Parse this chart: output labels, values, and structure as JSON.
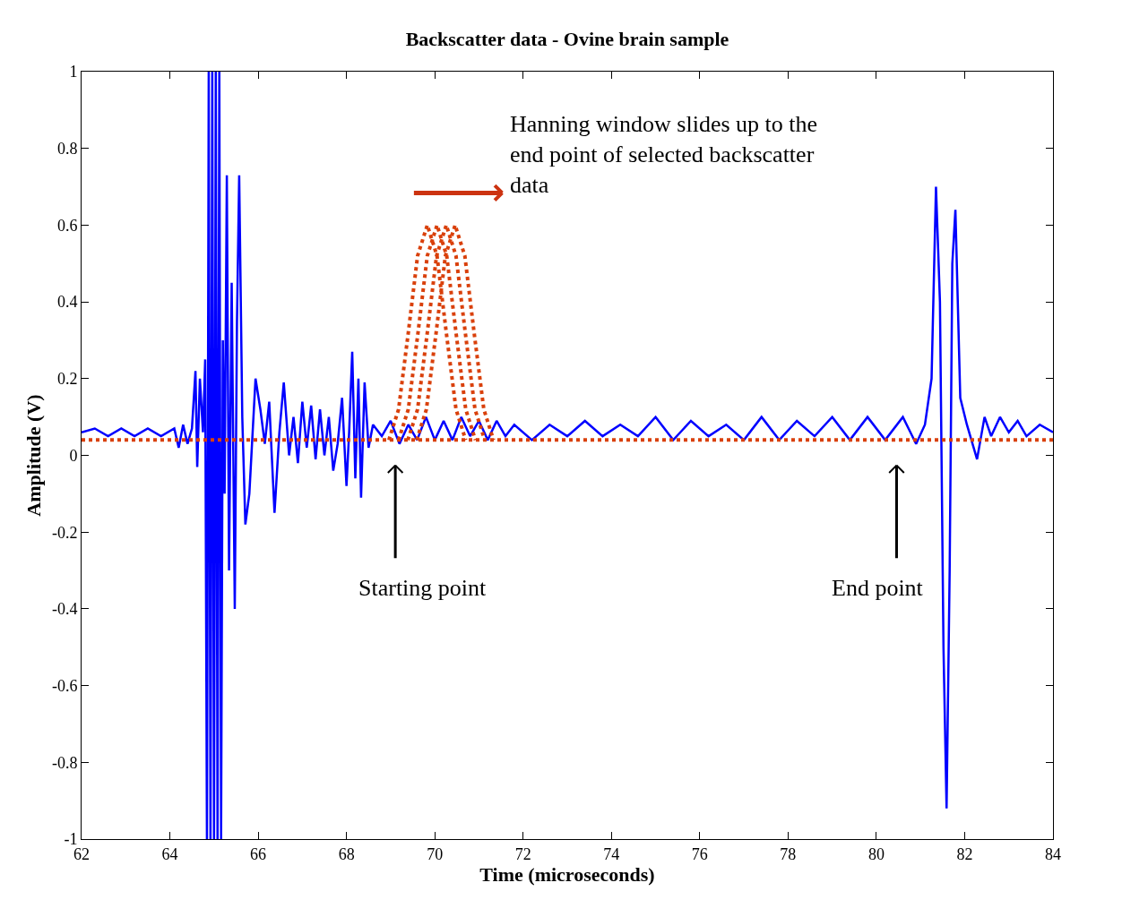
{
  "chart_data": {
    "type": "line",
    "title": "Backscatter data - Ovine brain sample",
    "xlabel": "Time (microseconds)",
    "ylabel": "Amplitude (V)",
    "xlim": [
      62,
      84
    ],
    "xticks": [
      62,
      64,
      66,
      68,
      70,
      72,
      74,
      76,
      78,
      80,
      82,
      84
    ],
    "ylim": [
      -1,
      1
    ],
    "yticks": [
      -1,
      -0.8,
      -0.6,
      -0.4,
      -0.2,
      0,
      0.2,
      0.4,
      0.6,
      0.8,
      1
    ],
    "series": [
      {
        "color": "#0000ff",
        "line_style": "solid",
        "x": [
          62,
          62.3,
          62.6,
          62.9,
          63.2,
          63.5,
          63.8,
          64.1,
          64.2,
          64.3,
          64.4,
          64.5,
          64.58,
          64.62,
          64.68,
          64.75,
          64.8,
          64.84,
          64.88,
          64.92,
          64.96,
          65.0,
          65.04,
          65.08,
          65.12,
          65.16,
          65.2,
          65.24,
          65.29,
          65.34,
          65.4,
          65.47,
          65.52,
          65.57,
          65.64,
          65.71,
          65.8,
          65.94,
          66.05,
          66.15,
          66.25,
          66.37,
          66.48,
          66.58,
          66.7,
          66.8,
          66.9,
          67.0,
          67.1,
          67.2,
          67.3,
          67.4,
          67.5,
          67.6,
          67.7,
          67.8,
          67.9,
          68.0,
          68.06,
          68.13,
          68.2,
          68.27,
          68.33,
          68.41,
          68.5,
          68.6,
          68.8,
          69.0,
          69.2,
          69.4,
          69.6,
          69.8,
          70.0,
          70.2,
          70.4,
          70.6,
          70.8,
          71.0,
          71.2,
          71.4,
          71.6,
          71.8,
          72.2,
          72.6,
          73.0,
          73.4,
          73.8,
          74.2,
          74.6,
          75.0,
          75.4,
          75.8,
          76.2,
          76.6,
          77.0,
          77.4,
          77.8,
          78.2,
          78.6,
          79.0,
          79.4,
          79.8,
          80.2,
          80.6,
          80.9,
          81.1,
          81.25,
          81.35,
          81.44,
          81.52,
          81.59,
          81.66,
          81.72,
          81.79,
          81.9,
          82.05,
          82.28,
          82.45,
          82.6,
          82.8,
          83.0,
          83.2,
          83.4,
          83.7,
          84
        ],
        "values": [
          0.06,
          0.07,
          0.05,
          0.07,
          0.05,
          0.07,
          0.05,
          0.07,
          0.02,
          0.08,
          0.03,
          0.07,
          0.22,
          -0.03,
          0.2,
          0.06,
          0.25,
          -1,
          1,
          -1,
          1,
          -1,
          1,
          -1,
          1,
          -1,
          0.3,
          -0.1,
          0.73,
          -0.3,
          0.45,
          -0.4,
          0.35,
          0.73,
          0.1,
          -0.18,
          -0.1,
          0.2,
          0.12,
          0.03,
          0.14,
          -0.15,
          0.06,
          0.19,
          0.0,
          0.1,
          -0.02,
          0.14,
          0.02,
          0.13,
          -0.01,
          0.12,
          0.0,
          0.1,
          -0.04,
          0.03,
          0.15,
          -0.08,
          0.06,
          0.27,
          -0.06,
          0.2,
          -0.11,
          0.19,
          0.02,
          0.08,
          0.05,
          0.09,
          0.03,
          0.08,
          0.04,
          0.1,
          0.04,
          0.09,
          0.04,
          0.1,
          0.05,
          0.09,
          0.04,
          0.09,
          0.05,
          0.08,
          0.04,
          0.08,
          0.05,
          0.09,
          0.05,
          0.08,
          0.05,
          0.1,
          0.04,
          0.09,
          0.05,
          0.08,
          0.04,
          0.1,
          0.04,
          0.09,
          0.05,
          0.1,
          0.04,
          0.1,
          0.04,
          0.1,
          0.03,
          0.08,
          0.2,
          0.7,
          0.4,
          -0.5,
          -0.92,
          -0.3,
          0.5,
          0.64,
          0.15,
          0.08,
          -0.01,
          0.1,
          0.05,
          0.1,
          0.06,
          0.09,
          0.05,
          0.08,
          0.06
        ]
      },
      {
        "color": "#d9400b",
        "line_style": "dotted",
        "x": [
          68.96,
          69.18,
          69.4,
          69.61,
          69.83,
          70.05,
          70.26,
          70.48,
          70.7
        ],
        "values": [
          0.04,
          0.12,
          0.32,
          0.52,
          0.6,
          0.52,
          0.32,
          0.12,
          0.04
        ]
      },
      {
        "color": "#d9400b",
        "line_style": "dotted",
        "x": [
          69.18,
          69.4,
          69.62,
          69.83,
          70.05,
          70.27,
          70.48,
          70.7,
          70.92
        ],
        "values": [
          0.04,
          0.12,
          0.32,
          0.52,
          0.6,
          0.52,
          0.32,
          0.12,
          0.04
        ]
      },
      {
        "color": "#d9400b",
        "line_style": "dotted",
        "x": [
          69.39,
          69.61,
          69.83,
          70.04,
          70.26,
          70.48,
          70.69,
          70.91,
          71.13
        ],
        "values": [
          0.04,
          0.12,
          0.32,
          0.52,
          0.6,
          0.52,
          0.32,
          0.12,
          0.04
        ]
      },
      {
        "color": "#d9400b",
        "line_style": "dotted",
        "x": [
          69.59,
          69.81,
          70.03,
          70.24,
          70.46,
          70.68,
          70.89,
          71.11,
          71.33
        ],
        "values": [
          0.04,
          0.12,
          0.32,
          0.52,
          0.6,
          0.52,
          0.32,
          0.12,
          0.04
        ]
      }
    ],
    "ref_lines": [
      {
        "axis": "y",
        "value": 0.04,
        "color": "#d9400b",
        "line_style": "dotted"
      }
    ],
    "annotations": [
      "Hanning window slides up to the end point of selected backscatter data",
      "Starting point",
      "End point"
    ]
  }
}
